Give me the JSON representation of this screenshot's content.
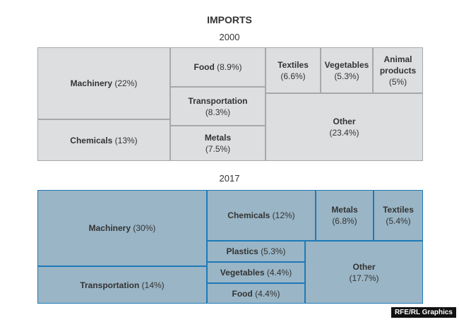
{
  "title": "IMPORTS",
  "credit": "RFE/RL Graphics",
  "colors": {
    "fill_2000": "#dcdee0",
    "border_2000": "#a6a8aa",
    "fill_2017": "#9ab5c5",
    "border_2017": "#1d7ab8"
  },
  "chart_data": [
    {
      "type": "treemap",
      "title": "IMPORTS",
      "subtitle": "2000",
      "unit": "%",
      "items": [
        {
          "label": "Machinery",
          "value": 22,
          "value_text": "(22%)"
        },
        {
          "label": "Chemicals",
          "value": 13,
          "value_text": "(13%)"
        },
        {
          "label": "Food",
          "value": 8.9,
          "value_text": "(8.9%)"
        },
        {
          "label": "Transportation",
          "value": 8.3,
          "value_text": "(8.3%)"
        },
        {
          "label": "Metals",
          "value": 7.5,
          "value_text": "(7.5%)"
        },
        {
          "label": "Textiles",
          "value": 6.6,
          "value_text": "(6.6%)"
        },
        {
          "label": "Vegetables",
          "value": 5.3,
          "value_text": "(5.3%)"
        },
        {
          "label": "Animal products",
          "value": 5,
          "value_text": "(5%)"
        },
        {
          "label": "Other",
          "value": 23.4,
          "value_text": "(23.4%)"
        }
      ]
    },
    {
      "type": "treemap",
      "subtitle": "2017",
      "unit": "%",
      "items": [
        {
          "label": "Machinery",
          "value": 30,
          "value_text": "(30%)"
        },
        {
          "label": "Transportation",
          "value": 14,
          "value_text": "(14%)"
        },
        {
          "label": "Chemicals",
          "value": 12,
          "value_text": "(12%)"
        },
        {
          "label": "Metals",
          "value": 6.8,
          "value_text": "(6.8%)"
        },
        {
          "label": "Textiles",
          "value": 5.4,
          "value_text": "(5.4%)"
        },
        {
          "label": "Plastics",
          "value": 5.3,
          "value_text": "(5.3%)"
        },
        {
          "label": "Vegetables",
          "value": 4.4,
          "value_text": "(4.4%)"
        },
        {
          "label": "Food",
          "value": 4.4,
          "value_text": "(4.4%)"
        },
        {
          "label": "Other",
          "value": 17.7,
          "value_text": "(17.7%)"
        }
      ]
    }
  ]
}
